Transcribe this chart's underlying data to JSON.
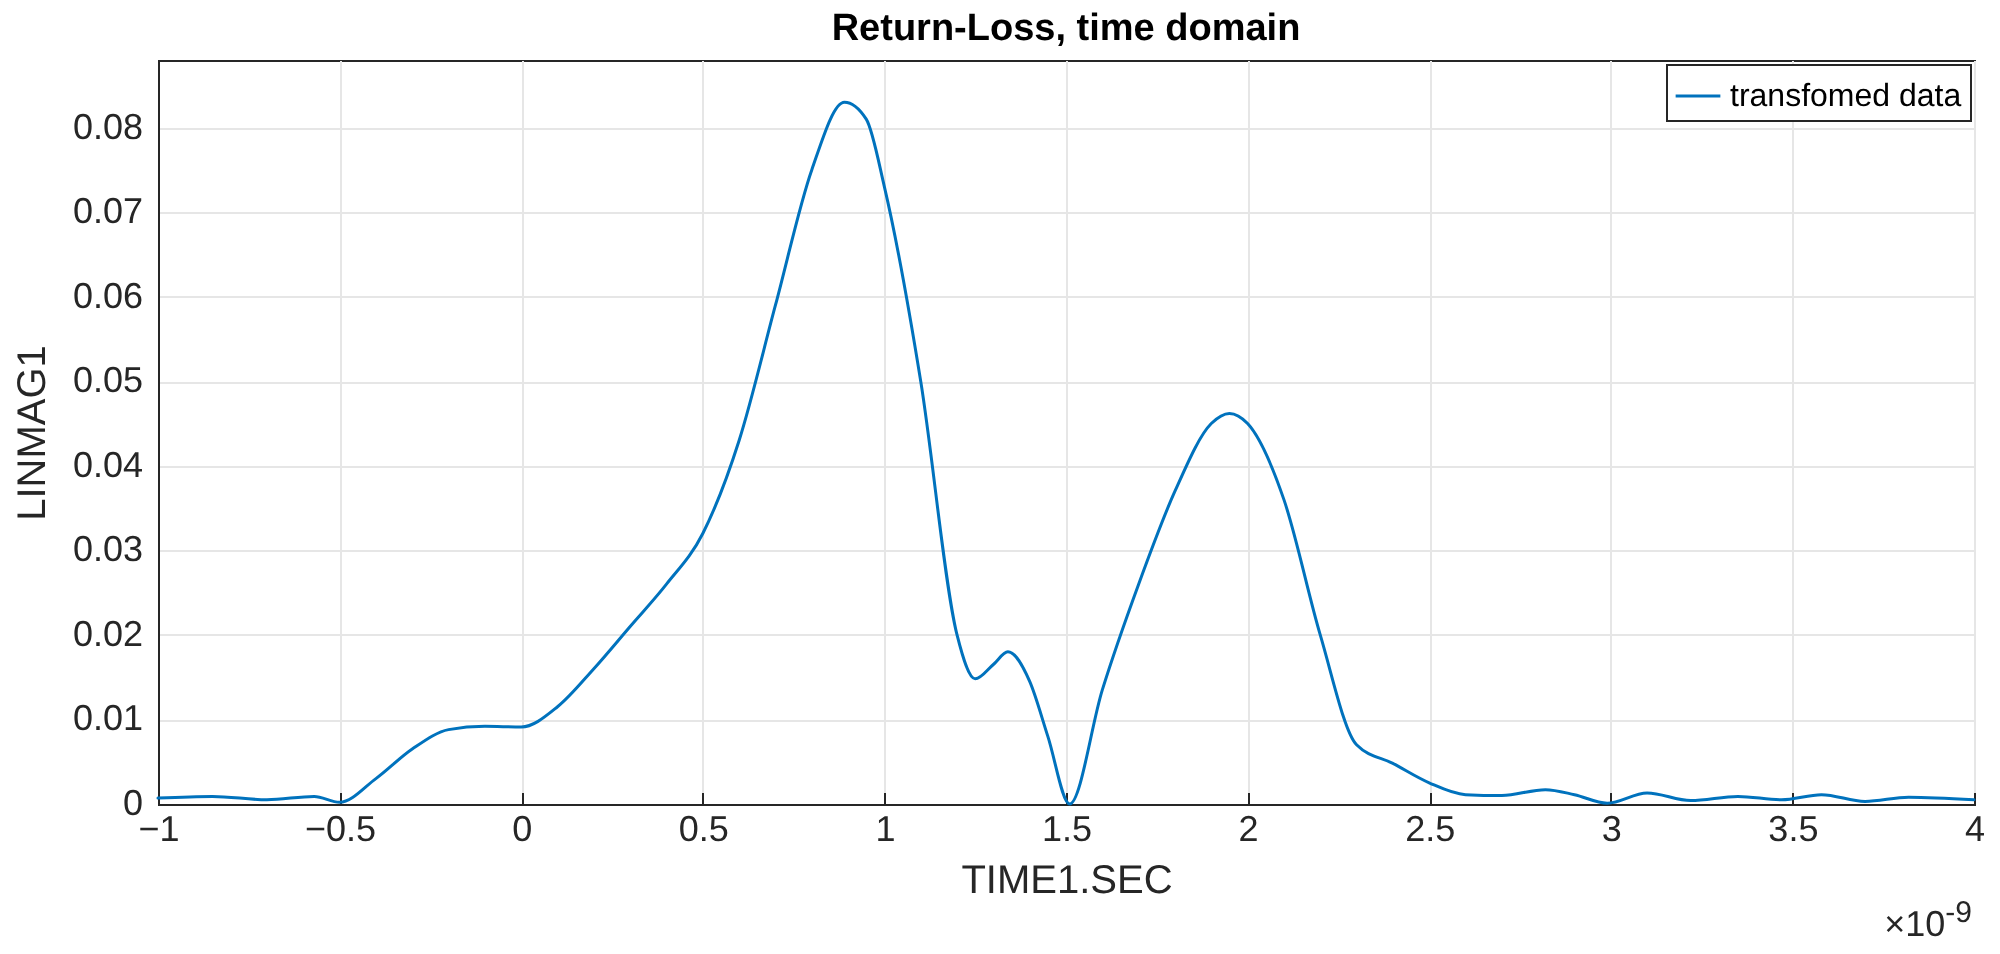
{
  "chart_data": {
    "type": "line",
    "title": "Return-Loss, time domain",
    "xlabel": "TIME1.SEC",
    "ylabel": "LINMAG1",
    "annotations": [
      "×10$^{-9}$"
    ],
    "series": [
      {
        "name": "transfomed data",
        "color": "#0072bd",
        "x": [
          -1,
          -0.85,
          -0.7,
          -0.57,
          -0.5,
          -0.4,
          -0.3,
          -0.2,
          -0.1,
          0,
          0.1,
          0.2,
          0.3,
          0.4,
          0.5,
          0.6,
          0.7,
          0.8,
          0.89,
          0.95,
          1.0,
          1.1,
          1.2,
          1.25,
          1.3,
          1.34,
          1.4,
          1.45,
          1.51,
          1.6,
          1.7,
          1.8,
          1.9,
          1.95,
          2.0,
          2.1,
          2.2,
          2.3,
          2.4,
          2.5,
          2.6,
          2.7,
          2.82,
          2.9,
          2.99,
          3.1,
          3.22,
          3.35,
          3.47,
          3.58,
          3.7,
          3.82,
          4
        ],
        "values": [
          0.0007,
          0.0009,
          0.0005,
          0.0009,
          0.0002,
          0.003,
          0.0065,
          0.0088,
          0.0092,
          0.0091,
          0.0115,
          0.016,
          0.021,
          0.026,
          0.032,
          0.043,
          0.059,
          0.075,
          0.083,
          0.081,
          0.073,
          0.05,
          0.02,
          0.0148,
          0.0165,
          0.018,
          0.0145,
          0.008,
          0.0,
          0.0135,
          0.026,
          0.037,
          0.045,
          0.0462,
          0.045,
          0.036,
          0.02,
          0.007,
          0.0048,
          0.0025,
          0.0011,
          0.001,
          0.0017,
          0.0011,
          0.0001,
          0.0013,
          0.0004,
          0.0009,
          0.0005,
          0.0011,
          0.0003,
          0.0008,
          0.0005
        ]
      }
    ],
    "xlim": [
      -1,
      4
    ],
    "xticks": [
      -1,
      -0.5,
      0,
      0.5,
      1,
      1.5,
      2,
      2.5,
      3,
      3.5,
      4
    ],
    "ylim": [
      0,
      0.088
    ],
    "yticks": [
      0,
      0.01,
      0.02,
      0.03,
      0.04,
      0.05,
      0.06,
      0.07,
      0.08
    ],
    "grid": true,
    "legend": "top right",
    "line_style": "solid",
    "marker": "none"
  }
}
